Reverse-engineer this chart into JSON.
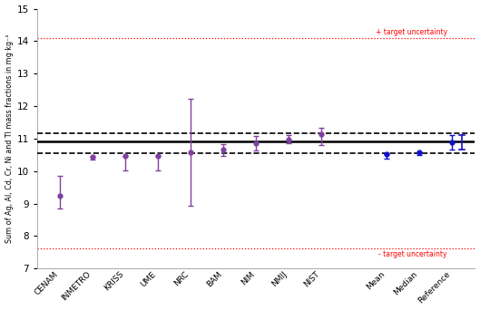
{
  "categories": [
    "CENAM",
    "INMETRO",
    "KRISS",
    "UME",
    "NRC",
    "BAM",
    "NIM",
    "NMIJ",
    "NIST",
    "",
    "Mean",
    "Median",
    "Reference"
  ],
  "values": [
    9.23,
    10.43,
    10.47,
    10.46,
    10.57,
    10.65,
    10.85,
    10.98,
    11.14,
    null,
    10.52,
    10.57,
    10.88
  ],
  "errors_low": [
    0.38,
    0.07,
    0.44,
    0.44,
    1.65,
    0.19,
    0.22,
    0.12,
    0.34,
    null,
    0.15,
    0.08,
    0.23
  ],
  "errors_high": [
    0.62,
    0.0,
    0.0,
    0.0,
    1.65,
    0.19,
    0.22,
    0.12,
    0.18,
    null,
    0.0,
    0.0,
    0.23
  ],
  "point_colors": [
    "#8040a0",
    "#8040a0",
    "#8040a0",
    "#8040a0",
    "#8040a0",
    "#8040a0",
    "#8040a0",
    "#8040a0",
    "#8040a0",
    null,
    "#1010cc",
    "#1010cc",
    "#1010cc"
  ],
  "error_colors": [
    "#8040a0",
    "#8040a0",
    "#8040a0",
    "#8040a0",
    "#8040a0",
    "#8040a0",
    "#8040a0",
    "#8040a0",
    "#8040a0",
    null,
    "#1010cc",
    "#1010cc",
    "#1010cc"
  ],
  "reference_line": 10.9,
  "dashed_upper": 11.17,
  "dashed_lower": 10.55,
  "target_upper": 14.1,
  "target_lower": 7.62,
  "ylabel": "Sum of Ag, Al, Cd, Cr, Ni and Tl mass fractions in mg·kg⁻¹",
  "ylim": [
    7.0,
    15.0
  ],
  "yticks": [
    7,
    8,
    9,
    10,
    11,
    12,
    13,
    14,
    15
  ],
  "target_upper_label": "+ target uncertainty",
  "target_lower_label": "- target uncertainty",
  "background_color": "#ffffff"
}
